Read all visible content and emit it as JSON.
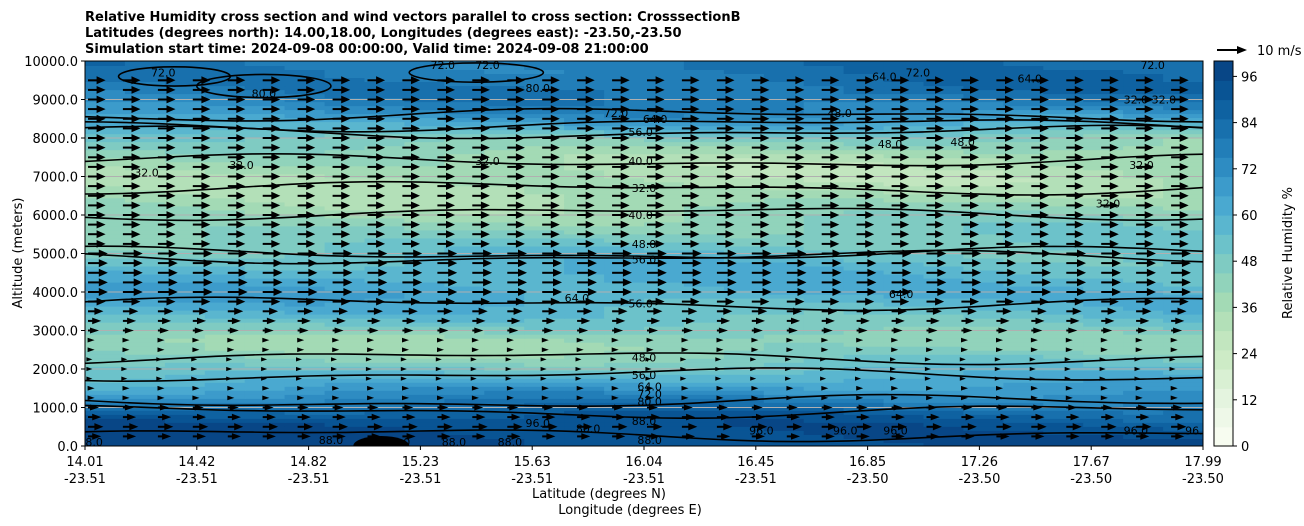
{
  "chart_data": {
    "type": "contourf",
    "title": {
      "line1": "Relative Humidity cross section and wind vectors parallel to cross section: CrosssectionB",
      "line2": "Latitudes (degrees north): 14.00,18.00, Longitudes (degrees east): -23.50,-23.50",
      "line3": "Simulation start time: 2024-09-08 00:00:00, Valid time: 2024-09-08 21:00:00"
    },
    "ylabel": "Altitude (meters)",
    "xlabel_lat": "Latitude (degrees N)",
    "xlabel_lon": "Longitude (degrees E)",
    "ylim": [
      0,
      10000
    ],
    "y_ticks": [
      "0.0",
      "1000.0",
      "2000.0",
      "3000.0",
      "4000.0",
      "5000.0",
      "6000.0",
      "7000.0",
      "8000.0",
      "9000.0",
      "10000.0"
    ],
    "y_tick_values": [
      0,
      1000,
      2000,
      3000,
      4000,
      5000,
      6000,
      7000,
      8000,
      9000,
      10000
    ],
    "x_ticks": [
      {
        "lat": "14.01",
        "lon": "-23.51"
      },
      {
        "lat": "14.42",
        "lon": "-23.51"
      },
      {
        "lat": "14.82",
        "lon": "-23.51"
      },
      {
        "lat": "15.23",
        "lon": "-23.51"
      },
      {
        "lat": "15.63",
        "lon": "-23.51"
      },
      {
        "lat": "16.04",
        "lon": "-23.51"
      },
      {
        "lat": "16.45",
        "lon": "-23.51"
      },
      {
        "lat": "16.85",
        "lon": "-23.50"
      },
      {
        "lat": "17.26",
        "lon": "-23.50"
      },
      {
        "lat": "17.67",
        "lon": "-23.50"
      },
      {
        "lat": "17.99",
        "lon": "-23.50"
      }
    ],
    "colorbar": {
      "label": "Relative Humidity %",
      "min": 0,
      "max": 100,
      "ticks": [
        "0",
        "12",
        "24",
        "36",
        "48",
        "60",
        "72",
        "84",
        "96"
      ],
      "tick_values": [
        0,
        12,
        24,
        36,
        48,
        60,
        72,
        84,
        96
      ],
      "colors": [
        "#f7fcf0",
        "#eef8e8",
        "#e4f4df",
        "#d9f0d3",
        "#cdebc6",
        "#c2e6bf",
        "#b3e0b8",
        "#a3dab5",
        "#91d3bb",
        "#7fcbc2",
        "#6cc2ca",
        "#5ab6cf",
        "#4aa9d0",
        "#3c9bcb",
        "#2e8cc2",
        "#227eb8",
        "#1870ad",
        "#0f62a1",
        "#095494",
        "#084686"
      ]
    },
    "rh_profile": [
      {
        "z": 0,
        "rh": 97
      },
      {
        "z": 300,
        "rh": 96
      },
      {
        "z": 600,
        "rh": 93
      },
      {
        "z": 900,
        "rh": 86
      },
      {
        "z": 1200,
        "rh": 76
      },
      {
        "z": 1500,
        "rh": 66
      },
      {
        "z": 1800,
        "rh": 58
      },
      {
        "z": 2100,
        "rh": 50
      },
      {
        "z": 2500,
        "rh": 42
      },
      {
        "z": 2800,
        "rh": 42
      },
      {
        "z": 3100,
        "rh": 50
      },
      {
        "z": 3500,
        "rh": 57
      },
      {
        "z": 4000,
        "rh": 62
      },
      {
        "z": 4500,
        "rh": 58
      },
      {
        "z": 5000,
        "rh": 52
      },
      {
        "z": 5500,
        "rh": 46
      },
      {
        "z": 6000,
        "rh": 42
      },
      {
        "z": 6500,
        "rh": 37
      },
      {
        "z": 7000,
        "rh": 34
      },
      {
        "z": 7500,
        "rh": 36
      },
      {
        "z": 8000,
        "rh": 46
      },
      {
        "z": 8300,
        "rh": 58
      },
      {
        "z": 8700,
        "rh": 72
      },
      {
        "z": 9200,
        "rh": 80
      },
      {
        "z": 10000,
        "rh": 82
      }
    ],
    "contours": [
      {
        "level": "88.0",
        "z": 300
      },
      {
        "level": "80.0",
        "z": 900
      },
      {
        "level": "64.0",
        "z": 1150
      },
      {
        "level": "56.0",
        "z": 1850
      },
      {
        "level": "48.0",
        "z": 2300
      },
      {
        "level": "56.0",
        "z": 3700
      },
      {
        "level": "48.0",
        "z": 5000
      },
      {
        "level": "56.0",
        "z": 4900
      },
      {
        "level": "40.0",
        "z": 6050
      },
      {
        "level": "32.0",
        "z": 6700
      },
      {
        "level": "40.0",
        "z": 7400
      },
      {
        "level": "56.0",
        "z": 8150
      },
      {
        "level": "64.0",
        "z": 8350
      },
      {
        "level": "72.0",
        "z": 8600
      }
    ],
    "contour_labels": [
      {
        "text": "72.0",
        "x": 0.07,
        "z": 9700
      },
      {
        "text": "80.0",
        "x": 0.16,
        "z": 9150
      },
      {
        "text": "72.0",
        "x": 0.32,
        "z": 9900
      },
      {
        "text": "72.0",
        "x": 0.36,
        "z": 9900
      },
      {
        "text": "80.0",
        "x": 0.405,
        "z": 9300
      },
      {
        "text": "32.0",
        "x": 0.055,
        "z": 7100
      },
      {
        "text": "32.0",
        "x": 0.14,
        "z": 7300
      },
      {
        "text": "32.0",
        "x": 0.36,
        "z": 7400
      },
      {
        "text": "72.0",
        "x": 0.475,
        "z": 8650
      },
      {
        "text": "64.0",
        "x": 0.51,
        "z": 8500
      },
      {
        "text": "56.0",
        "x": 0.497,
        "z": 8150
      },
      {
        "text": "40.0",
        "x": 0.497,
        "z": 7400
      },
      {
        "text": "32.0",
        "x": 0.5,
        "z": 6700
      },
      {
        "text": "40.0",
        "x": 0.497,
        "z": 6000
      },
      {
        "text": "48.0",
        "x": 0.5,
        "z": 5250
      },
      {
        "text": "56.0",
        "x": 0.5,
        "z": 4850
      },
      {
        "text": "64.0",
        "x": 0.44,
        "z": 3850
      },
      {
        "text": "56.0",
        "x": 0.497,
        "z": 3700
      },
      {
        "text": "48.0",
        "x": 0.5,
        "z": 2300
      },
      {
        "text": "56.0",
        "x": 0.5,
        "z": 1850
      },
      {
        "text": "64.0",
        "x": 0.505,
        "z": 1550
      },
      {
        "text": "72.0",
        "x": 0.505,
        "z": 1350
      },
      {
        "text": "80.0",
        "x": 0.505,
        "z": 1150
      },
      {
        "text": "88.0",
        "x": 0.5,
        "z": 650
      },
      {
        "text": "88.0",
        "x": 0.505,
        "z": 150
      },
      {
        "text": "96.0",
        "x": 0.405,
        "z": 600
      },
      {
        "text": "80.0",
        "x": 0.45,
        "z": 450
      },
      {
        "text": "88.0",
        "x": 0.22,
        "z": 150
      },
      {
        "text": "88.0",
        "x": 0.28,
        "z": 100
      },
      {
        "text": "88.0",
        "x": 0.33,
        "z": 100
      },
      {
        "text": "88.0",
        "x": 0.38,
        "z": 100
      },
      {
        "text": "88.0",
        "x": 0.005,
        "z": 100
      },
      {
        "text": "48.0",
        "x": 0.675,
        "z": 8650
      },
      {
        "text": "48.0",
        "x": 0.72,
        "z": 7850
      },
      {
        "text": "48.0",
        "x": 0.785,
        "z": 7900
      },
      {
        "text": "64.0",
        "x": 0.715,
        "z": 9600
      },
      {
        "text": "72.0",
        "x": 0.745,
        "z": 9700
      },
      {
        "text": "64.0",
        "x": 0.845,
        "z": 9550
      },
      {
        "text": "72.0",
        "x": 0.955,
        "z": 9900
      },
      {
        "text": "32.0",
        "x": 0.94,
        "z": 9000
      },
      {
        "text": "32.0",
        "x": 0.965,
        "z": 9000
      },
      {
        "text": "32.0",
        "x": 0.945,
        "z": 7300
      },
      {
        "text": "32.0",
        "x": 0.915,
        "z": 6300
      },
      {
        "text": "64.0",
        "x": 0.73,
        "z": 3950
      },
      {
        "text": "96.0",
        "x": 0.605,
        "z": 400
      },
      {
        "text": "96.0",
        "x": 0.68,
        "z": 400
      },
      {
        "text": "96.0",
        "x": 0.725,
        "z": 400
      },
      {
        "text": "96.0",
        "x": 0.94,
        "z": 400
      },
      {
        "text": "96.0",
        "x": 0.995,
        "z": 400
      }
    ],
    "quiver": {
      "key_label": "10 m/s",
      "key_speed": 10,
      "levels_z": [
        250,
        500,
        750,
        1000,
        1250,
        1500,
        1750,
        2000,
        2250,
        2500,
        2750,
        3000,
        3250,
        3500,
        3750,
        4000,
        4250,
        4500,
        4750,
        5000,
        5250,
        5500,
        5750,
        6000,
        6250,
        6500,
        6750,
        7000,
        7250,
        7500,
        7750,
        8000,
        8250,
        8500,
        8750,
        9000,
        9250,
        9500
      ],
      "speed_profile": [
        6,
        7,
        6,
        5,
        3,
        3,
        2,
        2,
        2,
        3,
        3,
        5,
        6,
        7,
        8,
        9,
        9,
        9,
        9,
        9,
        8,
        8,
        8,
        8,
        8,
        8,
        8,
        8,
        8,
        8,
        8,
        8,
        8,
        8,
        8,
        8,
        8,
        8
      ],
      "columns": 32
    }
  }
}
